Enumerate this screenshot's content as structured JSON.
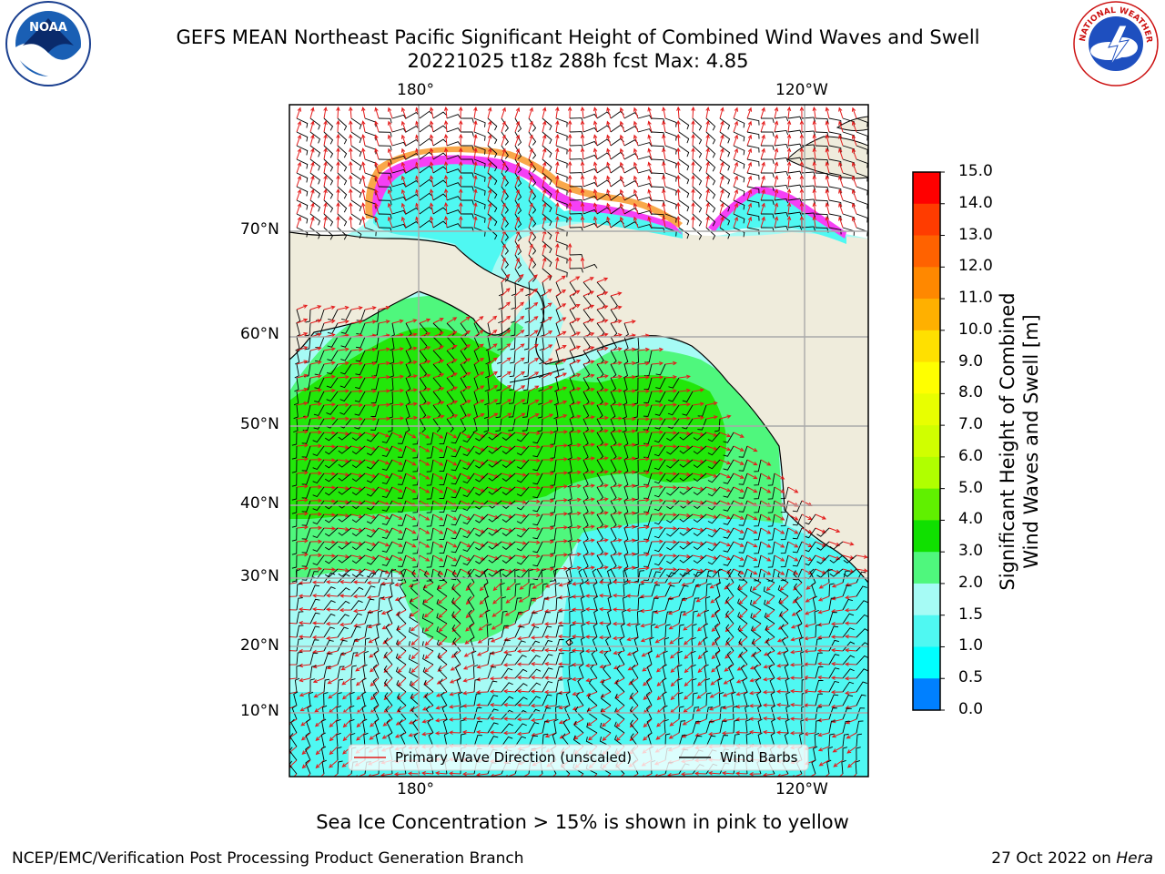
{
  "header": {
    "title_line1": "GEFS MEAN Northeast Pacific Significant Height of Combined Wind Waves and Swell",
    "title_line2": "20221025 t18z 288h fcst   Max: 4.85"
  },
  "logos": {
    "left": {
      "name": "noaa-logo",
      "text": "NOAA"
    },
    "right": {
      "name": "nws-logo",
      "text": "NATIONAL WEATHER SERVICE"
    }
  },
  "map": {
    "lon_labels_top": [
      "180°",
      "120°W"
    ],
    "lon_labels_bottom": [
      "180°",
      "120°W"
    ],
    "lat_labels": [
      "70°N",
      "60°N",
      "50°N",
      "40°N",
      "30°N",
      "20°N",
      "10°N"
    ],
    "legend": {
      "wave_dir": "Primary Wave Direction (unscaled)",
      "wind_barbs": "Wind Barbs"
    },
    "colors": {
      "land": "#efecdc",
      "ocean_light": "#a6fbf5",
      "ocean_cyan": "#4ff8f2",
      "green_light": "#4ff77d",
      "green": "#22e70a",
      "ice_pink": "#f540f5",
      "ice_orange": "#f9a84a",
      "arrow": "#e41a1a"
    }
  },
  "colorbar": {
    "label_line1": "Significant Height of Combined",
    "label_line2": "Wind Waves and Swell [m]",
    "ticks": [
      "15.0",
      "14.0",
      "13.0",
      "12.0",
      "11.0",
      "10.0",
      "9.0",
      "8.0",
      "7.0",
      "6.0",
      "5.0",
      "4.0",
      "3.0",
      "2.0",
      "1.5",
      "1.0",
      "0.5",
      "0.0"
    ],
    "colors": [
      "#ff0000",
      "#ff3c00",
      "#ff6200",
      "#ff8800",
      "#ffb000",
      "#ffe000",
      "#ffff00",
      "#e8ff00",
      "#d0ff00",
      "#b0ff00",
      "#60f000",
      "#10e000",
      "#4ff77d",
      "#a6fbf5",
      "#4ff8f2",
      "#00ffff",
      "#0080ff",
      "#0000ff"
    ]
  },
  "note": "Sea Ice Concentration > 15% is shown in pink to yellow",
  "footer": {
    "left": "NCEP/EMC/Verification Post Processing Product Generation Branch",
    "right_prefix": "27 Oct 2022 on ",
    "right_machine": "Hera"
  }
}
